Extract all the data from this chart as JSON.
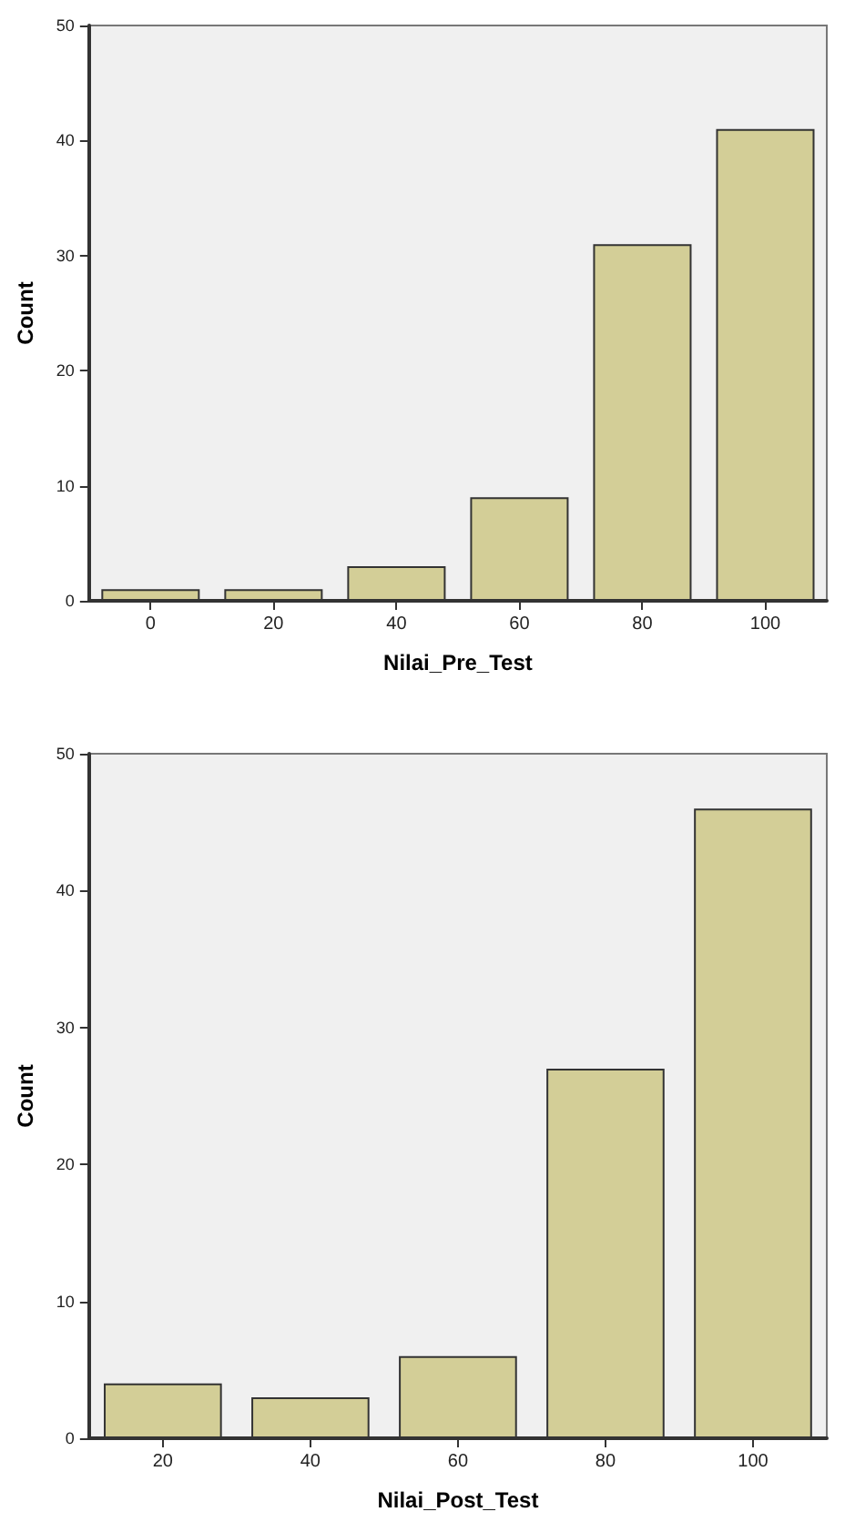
{
  "chart_data": [
    {
      "type": "bar",
      "xlabel": "Nilai_Pre_Test",
      "ylabel": "Count",
      "categories": [
        "0",
        "20",
        "40",
        "60",
        "80",
        "100"
      ],
      "values": [
        1,
        1,
        3,
        9,
        31,
        41
      ],
      "color": "#d3ce97",
      "ylim": [
        0,
        50
      ],
      "yticks": [
        0,
        10,
        20,
        30,
        40,
        50
      ]
    },
    {
      "type": "bar",
      "xlabel": "Nilai_Post_Test",
      "ylabel": "Count",
      "categories": [
        "20",
        "40",
        "60",
        "80",
        "100"
      ],
      "values": [
        4,
        3,
        6,
        27,
        46
      ],
      "color": "#d3ce97",
      "ylim": [
        0,
        50
      ],
      "yticks": [
        0,
        10,
        20,
        30,
        40,
        50
      ]
    }
  ]
}
